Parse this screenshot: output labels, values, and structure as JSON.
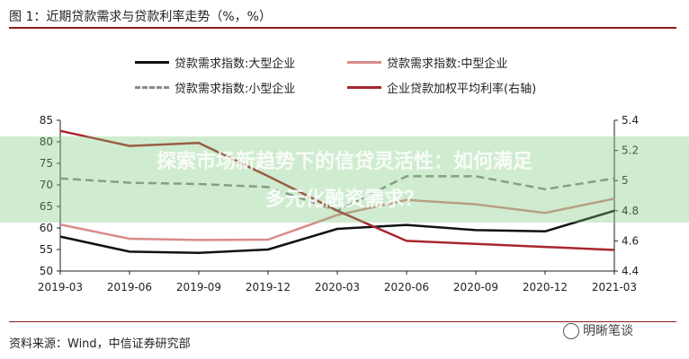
{
  "figure": {
    "title": "图 1：近期贷款需求与贷款利率走势（%，%）",
    "source": "资料来源：Wind，中信证券研究部",
    "watermark": "明晰笔谈",
    "overlay": {
      "line1": "探索市场新趋势下的信贷灵活性：如何满足",
      "line2": "多元化融资需求？"
    },
    "colors": {
      "title_rule": "#8b1c1c",
      "overlay": "#78c878"
    }
  },
  "chart_data": {
    "type": "line",
    "categories": [
      "2019-03",
      "2019-06",
      "2019-09",
      "2019-12",
      "2020-03",
      "2020-06",
      "2020-09",
      "2020-12",
      "2021-03"
    ],
    "series": [
      {
        "name": "贷款需求指数:大型企业",
        "axis": "left",
        "color": "#111111",
        "dash": false,
        "values": [
          58,
          54.5,
          54.2,
          55,
          59.8,
          60.7,
          59.5,
          59.2,
          64
        ]
      },
      {
        "name": "贷款需求指数:中型企业",
        "axis": "left",
        "color": "#d98a8a",
        "dash": false,
        "values": [
          60.8,
          57.5,
          57.2,
          57.3,
          63,
          66.5,
          65.5,
          63.5,
          66.8
        ]
      },
      {
        "name": "贷款需求指数:小型企业",
        "axis": "left",
        "color": "#8a8a8a",
        "dash": true,
        "values": [
          71.5,
          70.5,
          70.2,
          69.5,
          64,
          72,
          72,
          69,
          71.5
        ]
      },
      {
        "name": "企业贷款加权平均利率(右轴)",
        "axis": "right",
        "color": "#a8262c",
        "dash": false,
        "values": [
          5.33,
          5.23,
          5.25,
          5.03,
          4.8,
          4.6,
          4.58,
          4.56,
          4.54
        ]
      }
    ],
    "y_left": {
      "min": 50,
      "max": 85,
      "ticks": [
        50,
        55,
        60,
        65,
        70,
        75,
        80,
        85
      ]
    },
    "y_right": {
      "min": 4.4,
      "max": 5.4,
      "ticks": [
        4.4,
        4.6,
        4.8,
        5,
        5.2,
        5.4
      ]
    },
    "legend_position": "top",
    "grid": false
  }
}
